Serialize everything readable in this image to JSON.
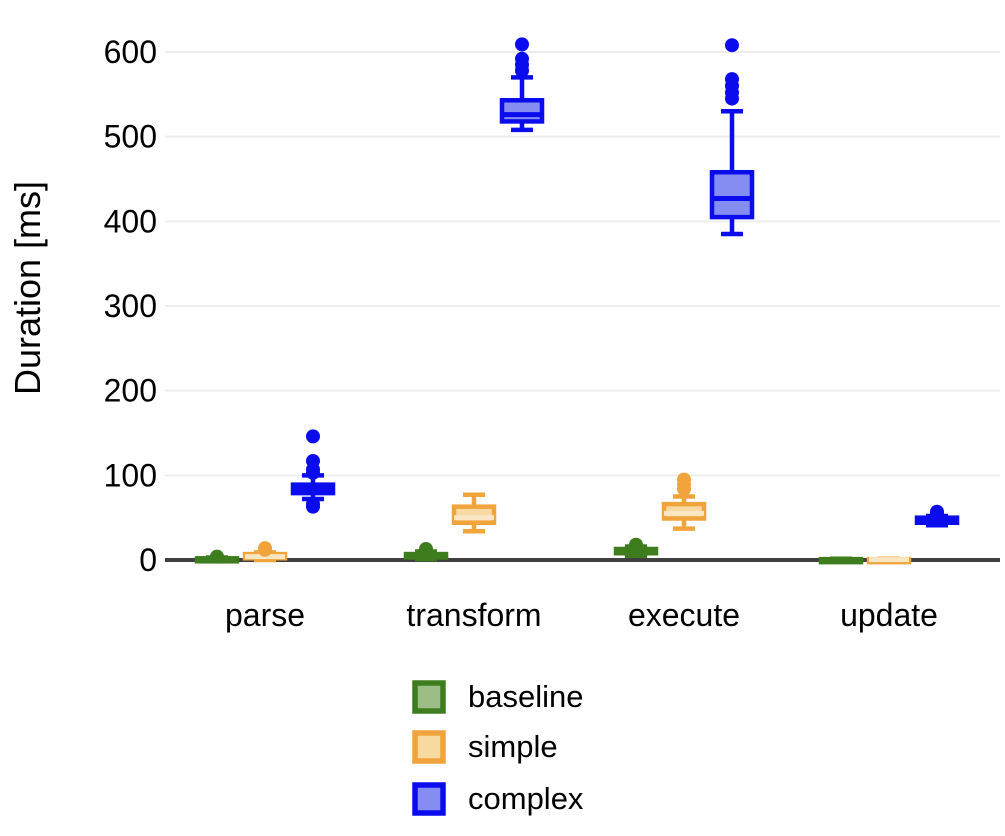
{
  "chart_data": {
    "type": "boxplot",
    "title": "",
    "xlabel": "",
    "ylabel": "Duration [ms]",
    "categories": [
      "parse",
      "transform",
      "execute",
      "update"
    ],
    "y_ticks": [
      0,
      100,
      200,
      300,
      400,
      500,
      600
    ],
    "ylim": [
      0,
      645
    ],
    "grid": "horizontal-light-gray",
    "legend_position": "bottom",
    "axis_line_color": "#3F3F3F",
    "gridline_color": "#EDEDED",
    "series": [
      {
        "name": "baseline",
        "color": "#3E7D1E",
        "fill": "#9CBD85",
        "median_color": "#3E7D1E",
        "boxes": [
          {
            "category": "parse",
            "whisker_low": 0,
            "q1": 0.5,
            "median": 1,
            "q3": 2,
            "whisker_high": 3,
            "outliers": [
              4
            ]
          },
          {
            "category": "transform",
            "whisker_low": 1,
            "q1": 3,
            "median": 5,
            "q3": 7,
            "whisker_high": 10,
            "outliers": [
              13
            ]
          },
          {
            "category": "execute",
            "whisker_low": 5,
            "q1": 8,
            "median": 10,
            "q3": 13,
            "whisker_high": 16,
            "outliers": [
              18
            ]
          },
          {
            "category": "update",
            "whisker_low": 0,
            "q1": 0,
            "median": 0.5,
            "q3": 1,
            "whisker_high": 1.5,
            "outliers": []
          }
        ]
      },
      {
        "name": "simple",
        "color": "#F2A43C",
        "fill": "#F7D9A2",
        "median_color": "#FAE6C2",
        "boxes": [
          {
            "category": "parse",
            "whisker_low": 0,
            "q1": 2,
            "median": 4,
            "q3": 7,
            "whisker_high": 9,
            "outliers": [
              12,
              14
            ]
          },
          {
            "category": "transform",
            "whisker_low": 34,
            "q1": 44,
            "median": 50,
            "q3": 63,
            "whisker_high": 77,
            "outliers": []
          },
          {
            "category": "execute",
            "whisker_low": 37,
            "q1": 49,
            "median": 55,
            "q3": 66,
            "whisker_high": 75,
            "outliers": [
              84,
              89,
              95
            ]
          },
          {
            "category": "update",
            "whisker_low": 0,
            "q1": 0,
            "median": 0.5,
            "q3": 1,
            "whisker_high": 1.5,
            "outliers": []
          }
        ]
      },
      {
        "name": "complex",
        "color": "#0B0CEE",
        "fill": "#868DF2",
        "median_color": "#0B0CEE",
        "boxes": [
          {
            "category": "parse",
            "whisker_low": 72,
            "q1": 79,
            "median": 84,
            "q3": 89,
            "whisker_high": 100,
            "outliers": [
              63,
              66,
              103,
              107,
              117,
              146
            ]
          },
          {
            "category": "transform",
            "whisker_low": 508,
            "q1": 518,
            "median": 526,
            "q3": 543,
            "whisker_high": 570,
            "outliers": [
              578,
              585,
              592,
              609
            ]
          },
          {
            "category": "execute",
            "whisker_low": 385,
            "q1": 405,
            "median": 427,
            "q3": 458,
            "whisker_high": 530,
            "outliers": [
              545,
              552,
              560,
              568,
              608
            ]
          },
          {
            "category": "update",
            "whisker_low": 41,
            "q1": 44,
            "median": 47,
            "q3": 50,
            "whisker_high": 52,
            "outliers": [
              55,
              57
            ]
          }
        ]
      }
    ],
    "legend": [
      {
        "label": "baseline",
        "color": "#3E7D1E",
        "fill": "#9CBD85"
      },
      {
        "label": "simple",
        "color": "#F2A43C",
        "fill": "#F7D9A2"
      },
      {
        "label": "complex",
        "color": "#0B0CEE",
        "fill": "#868DF2"
      }
    ]
  }
}
